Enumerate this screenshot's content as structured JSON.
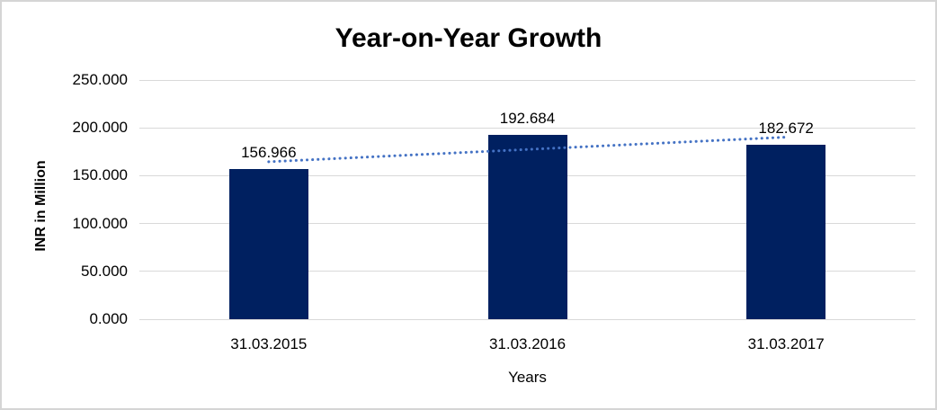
{
  "chart_data": {
    "type": "bar",
    "title": "Year-on-Year Growth",
    "categories": [
      "31.03.2015",
      "31.03.2016",
      "31.03.2017"
    ],
    "values": [
      156.966,
      192.684,
      182.672
    ],
    "data_labels": [
      "156.966",
      "192.684",
      "182.672"
    ],
    "xlabel": "Years",
    "ylabel": "INR in Million",
    "ylim": [
      0,
      250
    ],
    "yticks": [
      {
        "value": 0,
        "label": "0.000"
      },
      {
        "value": 50,
        "label": "50.000"
      },
      {
        "value": 100,
        "label": "100.000"
      },
      {
        "value": 150,
        "label": "150.000"
      },
      {
        "value": 200,
        "label": "200.000"
      },
      {
        "value": 250,
        "label": "250.000"
      }
    ],
    "grid": true,
    "legend_position": "none",
    "bar_color": "#002060",
    "gridline_color": "#d9d9d9",
    "trendline": {
      "type": "linear",
      "style": "dotted",
      "color": "#4472c4"
    }
  }
}
